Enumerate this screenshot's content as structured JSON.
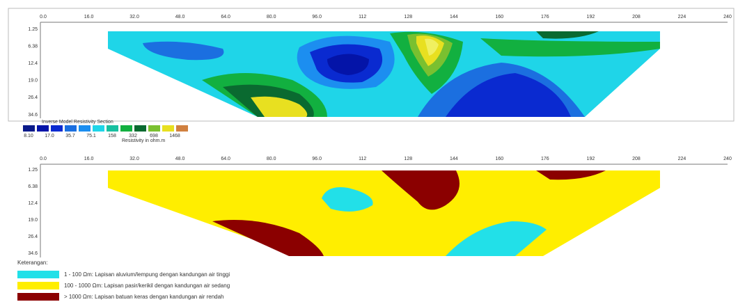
{
  "top_section": {
    "title": "Inverse Model Resistivity Section",
    "x_ticks": [
      "0.0",
      "16.0",
      "32.0",
      "48.0",
      "64.0",
      "80.0",
      "96.0",
      "112",
      "128",
      "144",
      "160",
      "176",
      "192",
      "208",
      "224",
      "240"
    ],
    "depth_ticks": [
      "1.25",
      "6.38",
      "12.4",
      "19.0",
      "26.4",
      "34.6"
    ],
    "colorbar": {
      "labels": [
        "8.10",
        "17.0",
        "35.7",
        "75.1",
        "158",
        "332",
        "698",
        "1468"
      ],
      "caption": "Resistivity in ohm.m"
    }
  },
  "bottom_section": {
    "x_ticks": [
      "0.0",
      "16.0",
      "32.0",
      "48.0",
      "64.0",
      "80.0",
      "96.0",
      "112",
      "128",
      "144",
      "160",
      "176",
      "192",
      "208",
      "224",
      "240"
    ],
    "depth_ticks": [
      "1.25",
      "6.38",
      "12.4",
      "19.0",
      "26.4",
      "34.6"
    ]
  },
  "legend": {
    "title": "Keterangan:",
    "items": [
      "1 - 100 Ωm: Lapisan aluvium/lempung dengan kandungan air tinggi",
      "100 - 1000 Ωm: Lapisan pasir/kerikil dengan kandungan air sedang",
      "> 1000 Ωm: Lapisan batuan keras dengan kandungan air rendah"
    ]
  }
}
